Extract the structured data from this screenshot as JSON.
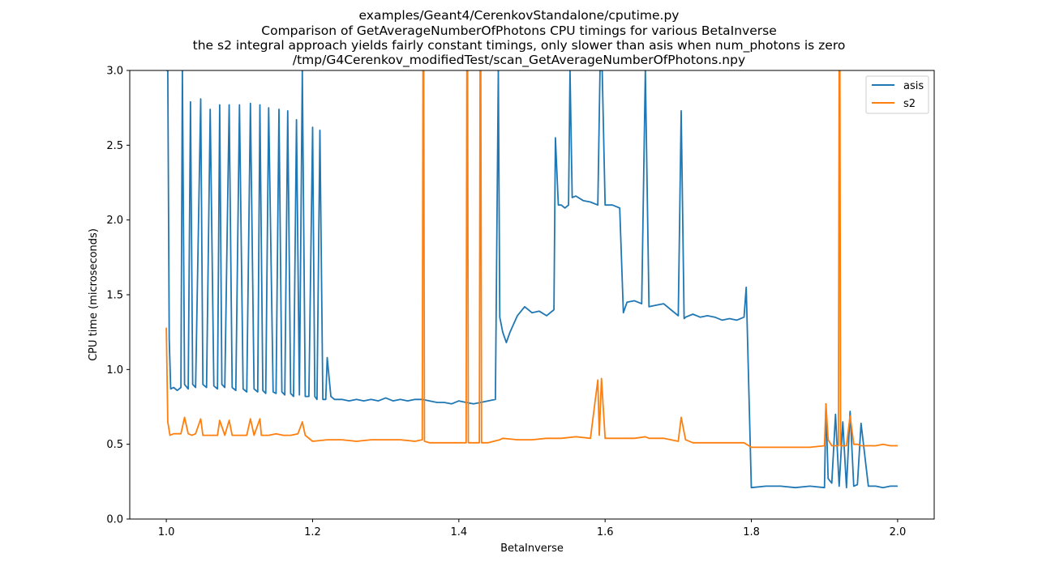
{
  "chart_data": {
    "type": "line",
    "title_lines": [
      "examples/Geant4/CerenkovStandalone/cputime.py",
      "Comparison of GetAverageNumberOfPhotons CPU timings for various BetaInverse",
      "the s2 integral approach yields fairly constant timings, only slower than asis when num_photons is zero",
      "/tmp/G4Cerenkov_modifiedTest/scan_GetAverageNumberOfPhotons.npy"
    ],
    "xlabel": "BetaInverse",
    "ylabel": "CPU time (microseconds)",
    "xlim": [
      0.95,
      2.05
    ],
    "ylim": [
      0.0,
      3.0
    ],
    "xticks": [
      1.0,
      1.2,
      1.4,
      1.6,
      1.8,
      2.0
    ],
    "xtick_labels": [
      "1.0",
      "1.2",
      "1.4",
      "1.6",
      "1.8",
      "2.0"
    ],
    "yticks": [
      0.0,
      0.5,
      1.0,
      1.5,
      2.0,
      2.5,
      3.0
    ],
    "ytick_labels": [
      "0.0",
      "0.5",
      "1.0",
      "1.5",
      "2.0",
      "2.5",
      "3.0"
    ],
    "legend_position": "top-right",
    "grid": false,
    "series": [
      {
        "name": "asis",
        "color": "#1f77b4",
        "x": [
          1.0,
          1.002,
          1.004,
          1.006,
          1.01,
          1.015,
          1.02,
          1.022,
          1.025,
          1.03,
          1.033,
          1.036,
          1.04,
          1.047,
          1.05,
          1.055,
          1.06,
          1.065,
          1.07,
          1.073,
          1.076,
          1.08,
          1.086,
          1.09,
          1.095,
          1.1,
          1.105,
          1.11,
          1.115,
          1.12,
          1.125,
          1.128,
          1.132,
          1.136,
          1.14,
          1.146,
          1.15,
          1.154,
          1.158,
          1.162,
          1.166,
          1.17,
          1.174,
          1.178,
          1.182,
          1.186,
          1.19,
          1.195,
          1.2,
          1.203,
          1.206,
          1.21,
          1.214,
          1.218,
          1.22,
          1.225,
          1.23,
          1.24,
          1.25,
          1.26,
          1.27,
          1.28,
          1.29,
          1.3,
          1.31,
          1.32,
          1.33,
          1.34,
          1.35,
          1.36,
          1.37,
          1.38,
          1.39,
          1.4,
          1.41,
          1.42,
          1.43,
          1.44,
          1.45,
          1.454,
          1.456,
          1.46,
          1.465,
          1.47,
          1.48,
          1.49,
          1.5,
          1.51,
          1.52,
          1.53,
          1.532,
          1.536,
          1.54,
          1.545,
          1.55,
          1.552,
          1.555,
          1.56,
          1.57,
          1.58,
          1.59,
          1.593,
          1.596,
          1.6,
          1.61,
          1.62,
          1.625,
          1.63,
          1.64,
          1.65,
          1.655,
          1.66,
          1.67,
          1.68,
          1.69,
          1.7,
          1.704,
          1.708,
          1.71,
          1.72,
          1.73,
          1.74,
          1.75,
          1.76,
          1.77,
          1.78,
          1.79,
          1.793,
          1.8,
          1.82,
          1.84,
          1.86,
          1.88,
          1.9,
          1.902,
          1.905,
          1.91,
          1.915,
          1.92,
          1.925,
          1.93,
          1.935,
          1.94,
          1.945,
          1.95,
          1.96,
          1.97,
          1.98,
          1.99,
          2.0
        ],
        "y": [
          3.0,
          3.0,
          1.2,
          0.87,
          0.88,
          0.86,
          0.88,
          3.0,
          0.9,
          0.87,
          2.79,
          0.9,
          0.88,
          2.81,
          0.9,
          0.88,
          2.74,
          0.89,
          0.87,
          2.77,
          0.9,
          0.88,
          2.77,
          0.88,
          0.86,
          2.77,
          0.87,
          0.85,
          2.78,
          0.87,
          0.85,
          2.77,
          0.86,
          0.84,
          2.75,
          0.85,
          0.84,
          2.74,
          0.85,
          0.83,
          2.73,
          0.84,
          0.82,
          2.67,
          0.83,
          3.0,
          0.82,
          0.82,
          2.62,
          0.82,
          0.8,
          2.6,
          0.8,
          0.8,
          1.08,
          0.82,
          0.8,
          0.8,
          0.79,
          0.8,
          0.79,
          0.8,
          0.79,
          0.81,
          0.79,
          0.8,
          0.79,
          0.8,
          0.8,
          0.79,
          0.78,
          0.78,
          0.77,
          0.79,
          0.78,
          0.77,
          0.78,
          0.79,
          0.8,
          3.0,
          1.35,
          1.25,
          1.18,
          1.25,
          1.36,
          1.42,
          1.38,
          1.39,
          1.36,
          1.4,
          2.55,
          2.1,
          2.1,
          2.08,
          2.1,
          3.0,
          2.15,
          2.16,
          2.13,
          2.12,
          2.1,
          3.0,
          3.0,
          2.1,
          2.1,
          2.08,
          1.38,
          1.45,
          1.46,
          1.44,
          3.0,
          1.42,
          1.43,
          1.44,
          1.4,
          1.36,
          2.73,
          1.34,
          1.35,
          1.37,
          1.35,
          1.36,
          1.35,
          1.33,
          1.34,
          1.33,
          1.35,
          1.55,
          0.21,
          0.22,
          0.22,
          0.21,
          0.22,
          0.21,
          0.77,
          0.27,
          0.24,
          0.7,
          0.22,
          0.65,
          0.21,
          0.72,
          0.22,
          0.23,
          0.64,
          0.22,
          0.22,
          0.21,
          0.22,
          0.22
        ]
      },
      {
        "name": "s2",
        "color": "#ff7f0e",
        "x": [
          1.0,
          1.002,
          1.005,
          1.01,
          1.02,
          1.025,
          1.03,
          1.035,
          1.04,
          1.047,
          1.05,
          1.06,
          1.07,
          1.073,
          1.08,
          1.086,
          1.09,
          1.1,
          1.11,
          1.115,
          1.12,
          1.128,
          1.13,
          1.14,
          1.15,
          1.16,
          1.17,
          1.18,
          1.186,
          1.19,
          1.2,
          1.22,
          1.24,
          1.26,
          1.28,
          1.3,
          1.32,
          1.34,
          1.35,
          1.351,
          1.352,
          1.353,
          1.36,
          1.38,
          1.4,
          1.41,
          1.411,
          1.412,
          1.413,
          1.42,
          1.428,
          1.429,
          1.43,
          1.431,
          1.44,
          1.456,
          1.46,
          1.48,
          1.5,
          1.52,
          1.53,
          1.54,
          1.56,
          1.58,
          1.59,
          1.592,
          1.595,
          1.6,
          1.62,
          1.64,
          1.655,
          1.66,
          1.68,
          1.7,
          1.704,
          1.71,
          1.72,
          1.74,
          1.76,
          1.78,
          1.79,
          1.8,
          1.82,
          1.84,
          1.86,
          1.88,
          1.9,
          1.902,
          1.905,
          1.91,
          1.915,
          1.919,
          1.92,
          1.921,
          1.922,
          1.925,
          1.93,
          1.935,
          1.94,
          1.945,
          1.95,
          1.96,
          1.97,
          1.98,
          1.99,
          2.0
        ],
        "y": [
          1.28,
          0.65,
          0.56,
          0.57,
          0.57,
          0.68,
          0.57,
          0.56,
          0.57,
          0.67,
          0.56,
          0.56,
          0.56,
          0.66,
          0.56,
          0.66,
          0.56,
          0.56,
          0.56,
          0.67,
          0.56,
          0.67,
          0.56,
          0.56,
          0.57,
          0.56,
          0.56,
          0.57,
          0.65,
          0.56,
          0.52,
          0.53,
          0.53,
          0.52,
          0.53,
          0.53,
          0.53,
          0.52,
          0.53,
          3.0,
          3.0,
          0.52,
          0.51,
          0.51,
          0.51,
          0.51,
          3.0,
          3.0,
          0.51,
          0.51,
          0.51,
          3.0,
          3.0,
          0.51,
          0.51,
          0.53,
          0.54,
          0.53,
          0.53,
          0.54,
          0.54,
          0.54,
          0.55,
          0.54,
          0.93,
          0.56,
          0.94,
          0.54,
          0.54,
          0.54,
          0.55,
          0.54,
          0.54,
          0.52,
          0.68,
          0.53,
          0.51,
          0.51,
          0.51,
          0.51,
          0.51,
          0.48,
          0.48,
          0.48,
          0.48,
          0.48,
          0.49,
          0.77,
          0.53,
          0.49,
          0.49,
          0.49,
          3.0,
          3.0,
          0.49,
          0.49,
          0.49,
          0.69,
          0.5,
          0.5,
          0.49,
          0.49,
          0.49,
          0.5,
          0.49,
          0.49
        ]
      }
    ]
  }
}
